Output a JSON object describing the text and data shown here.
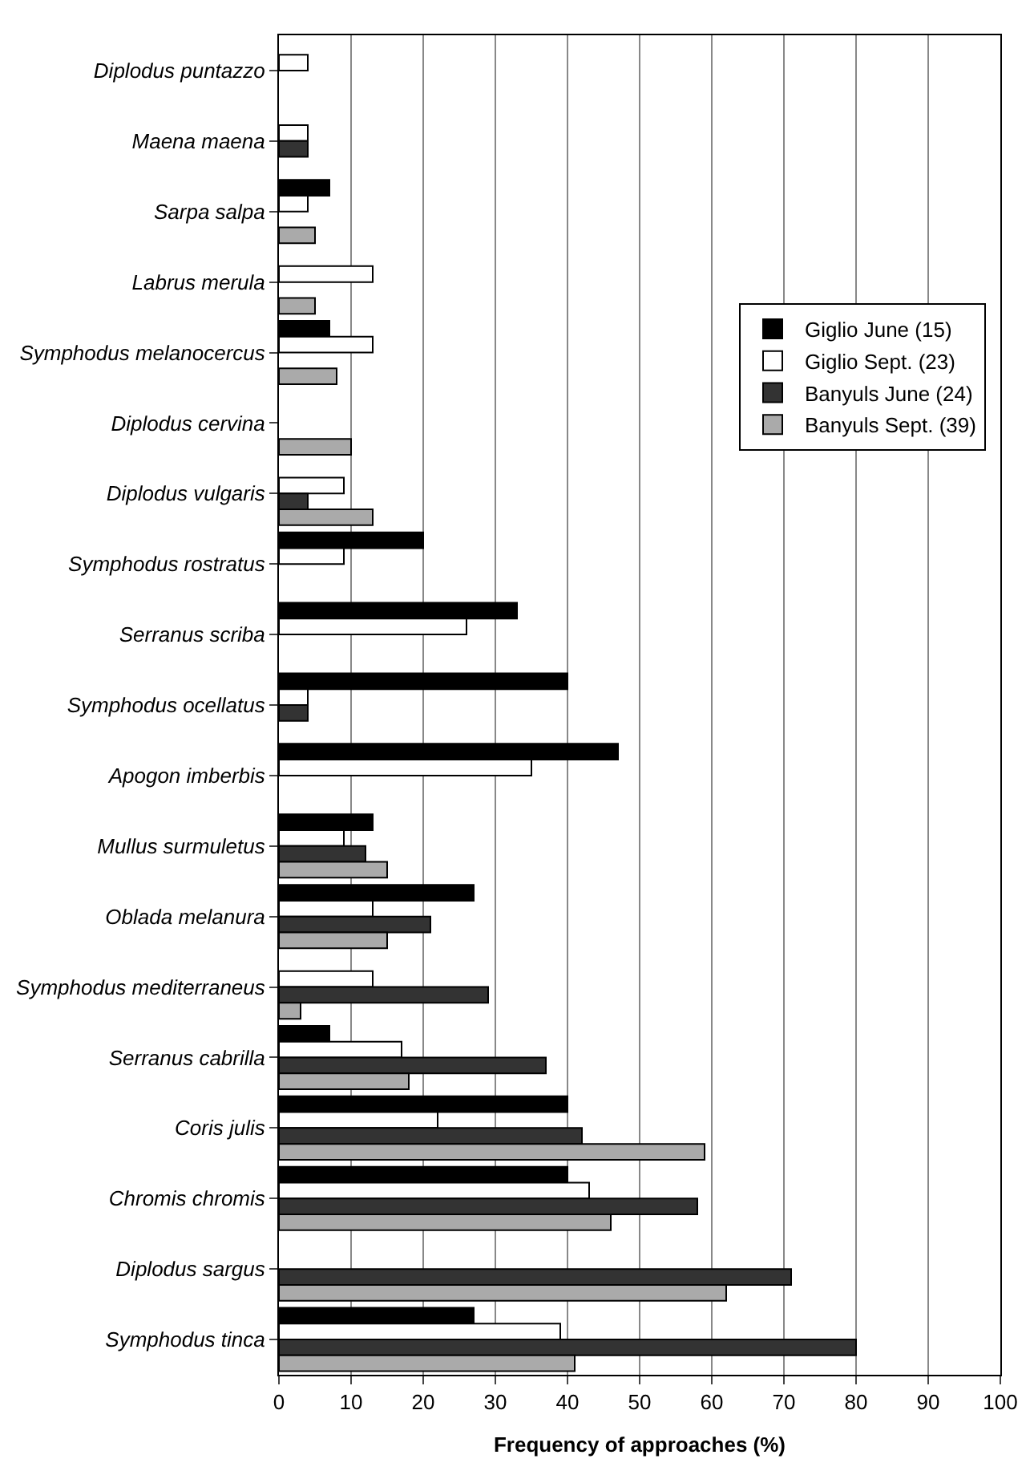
{
  "chart_data": {
    "type": "bar",
    "orientation": "horizontal",
    "xlabel": "Frequency of approaches (%)",
    "categories": [
      "Diplodus puntazzo",
      "Maena maena",
      "Sarpa salpa",
      "Labrus merula",
      "Symphodus melanocercus",
      "Diplodus cervina",
      "Diplodus vulgaris",
      "Symphodus rostratus",
      "Serranus scriba",
      "Symphodus ocellatus",
      "Apogon imberbis",
      "Mullus surmuletus",
      "Oblada melanura",
      "Symphodus mediterraneus",
      "Serranus cabrilla",
      "Coris julis",
      "Chromis chromis",
      "Diplodus sargus",
      "Symphodus tinca"
    ],
    "series": [
      {
        "name": "Giglio June (15)",
        "color": "#000000",
        "values": [
          null,
          null,
          7,
          null,
          7,
          null,
          null,
          20,
          33,
          40,
          47,
          13,
          27,
          null,
          7,
          40,
          40,
          null,
          27
        ]
      },
      {
        "name": "Giglio Sept. (23)",
        "color": "#ffffff",
        "values": [
          4,
          4,
          4,
          13,
          13,
          null,
          9,
          9,
          26,
          4,
          35,
          9,
          13,
          13,
          17,
          22,
          43,
          null,
          39
        ]
      },
      {
        "name": "Banyuls June (24)",
        "color": "#333333",
        "values": [
          null,
          4,
          null,
          null,
          null,
          null,
          4,
          null,
          null,
          4,
          null,
          12,
          21,
          29,
          37,
          42,
          58,
          71,
          80
        ]
      },
      {
        "name": "Banyuls Sept. (39)",
        "color": "#aaaaaa",
        "values": [
          null,
          null,
          5,
          5,
          8,
          10,
          13,
          null,
          null,
          null,
          null,
          15,
          15,
          3,
          18,
          59,
          46,
          62,
          41
        ]
      }
    ],
    "xlim": [
      0,
      100
    ],
    "xticks": [
      0,
      10,
      20,
      30,
      40,
      50,
      60,
      70,
      80,
      90,
      100
    ],
    "grid": "x",
    "legend": "top right"
  }
}
